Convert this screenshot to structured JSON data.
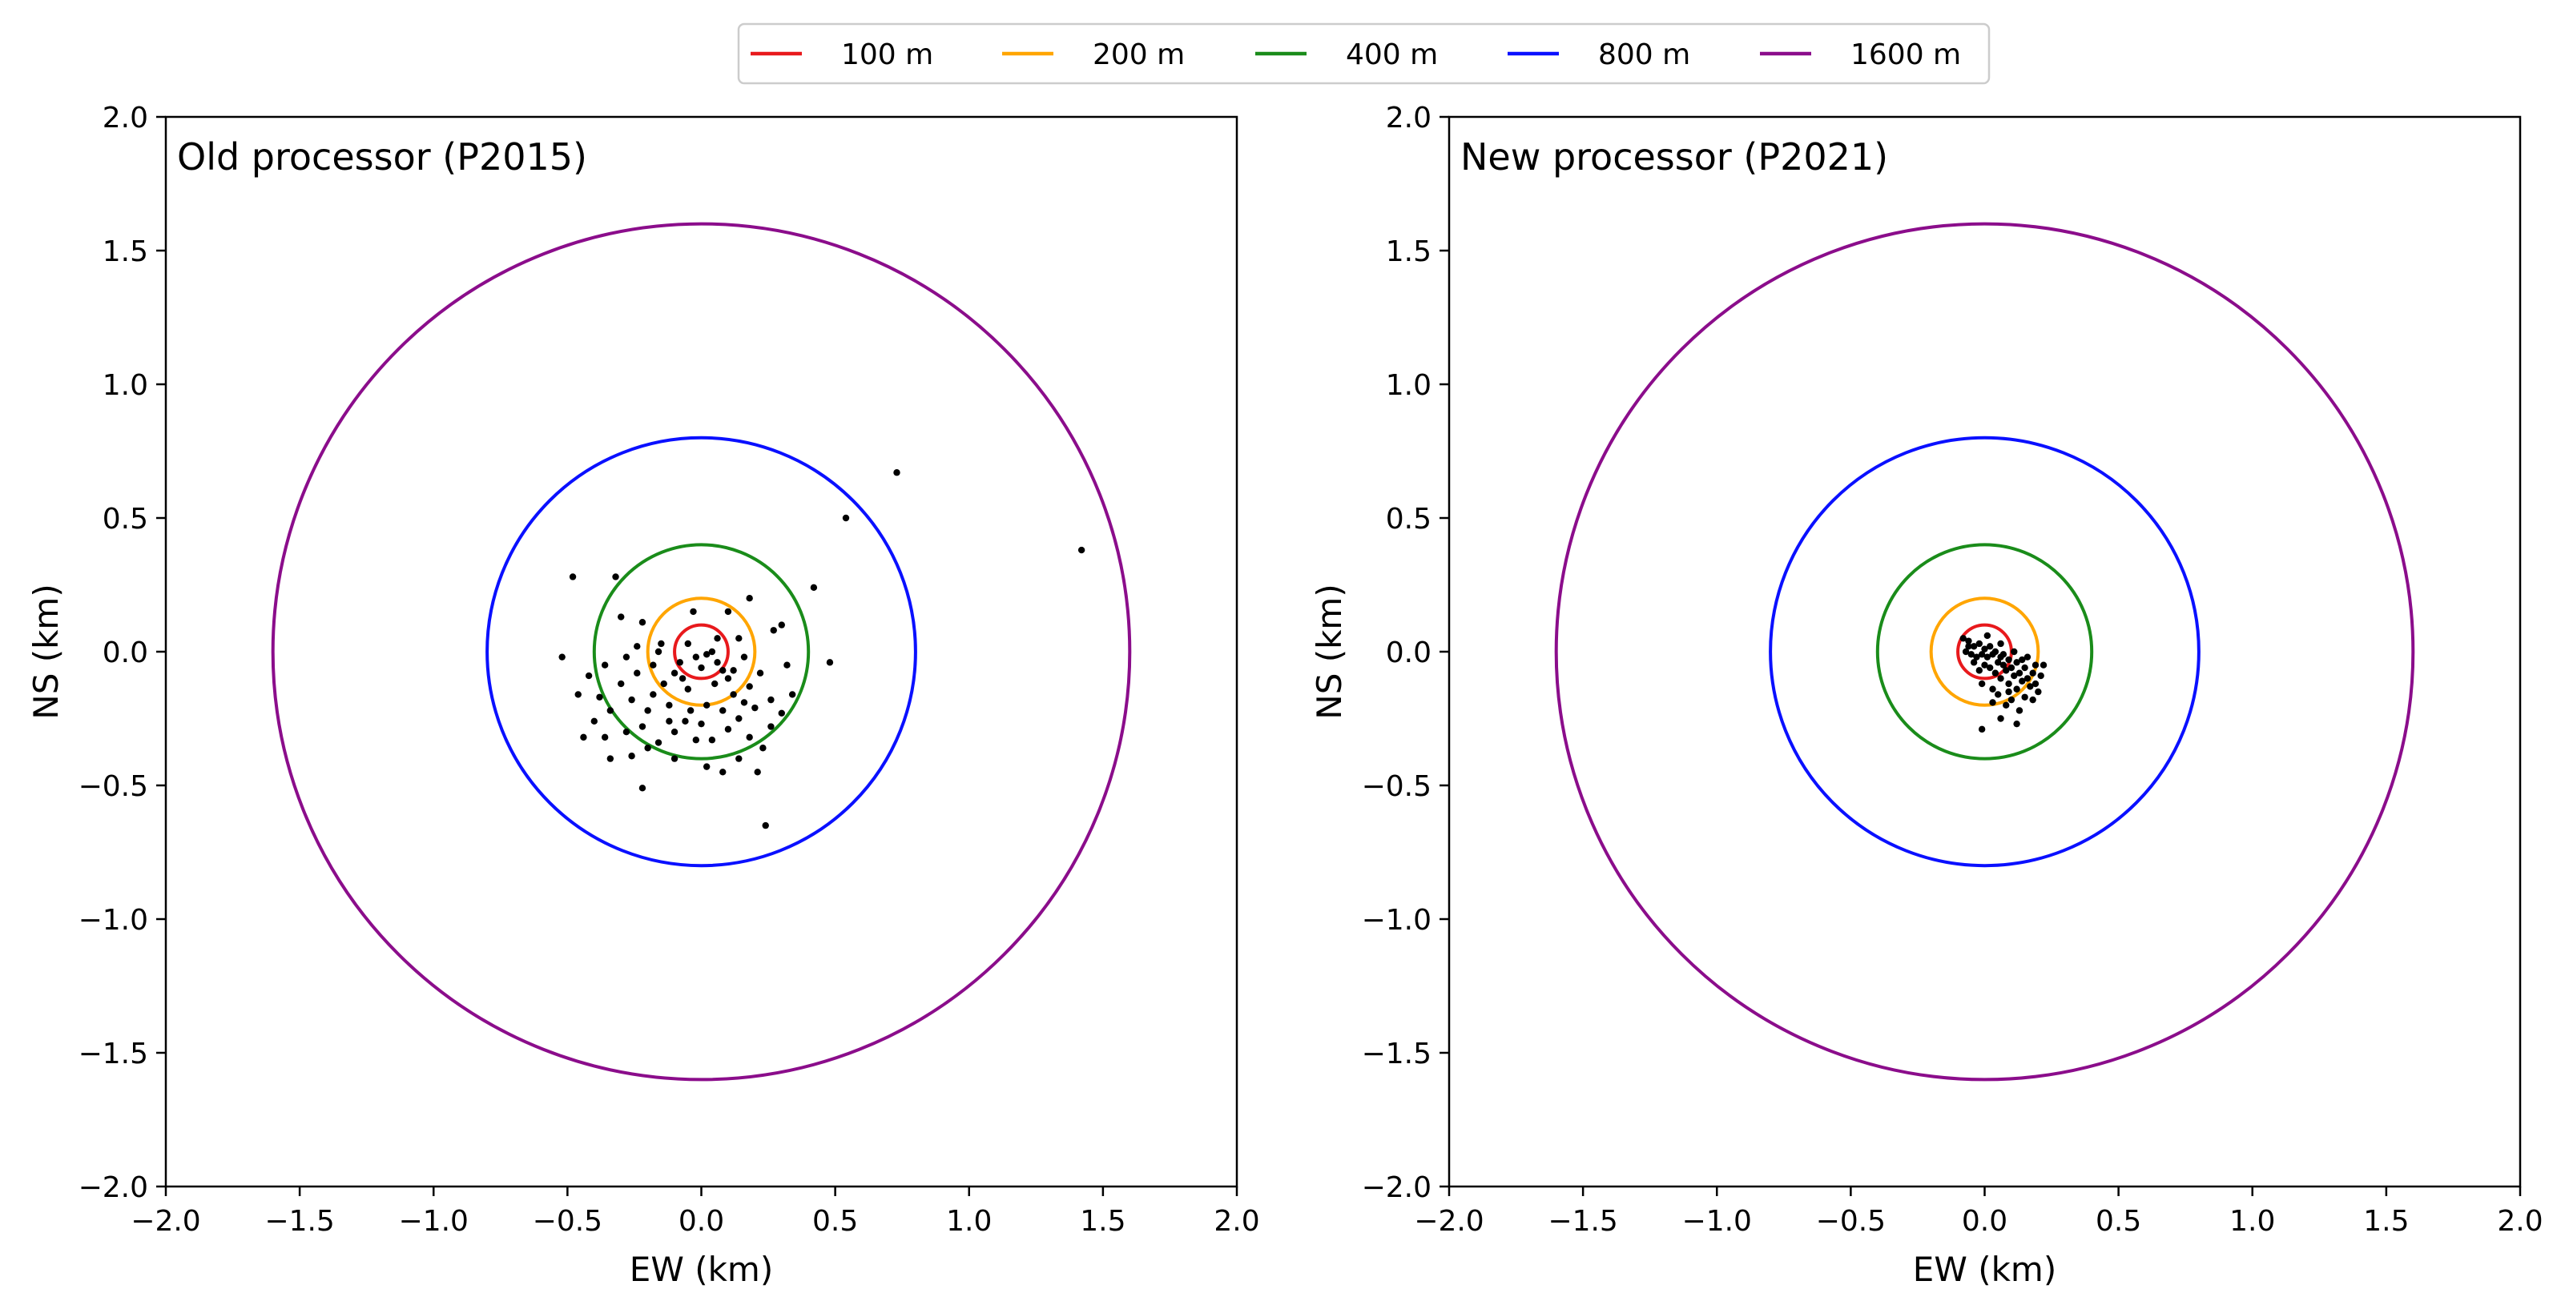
{
  "chart_data": {
    "type": "scatter",
    "figure_title": "",
    "legend": {
      "placement": "top-center",
      "entries": [
        {
          "label": "100 m",
          "radius_km": 0.1,
          "color": "#e8191c"
        },
        {
          "label": "200 m",
          "radius_km": 0.2,
          "color": "#ffa500"
        },
        {
          "label": "400 m",
          "radius_km": 0.4,
          "color": "#1a8c1a"
        },
        {
          "label": "800 m",
          "radius_km": 0.8,
          "color": "#0a10ff"
        },
        {
          "label": "1600 m",
          "radius_km": 1.6,
          "color": "#8b0d8b"
        }
      ]
    },
    "marker_color": "#000000",
    "panels": [
      {
        "title": "Old processor (P2015)",
        "xlabel": "EW (km)",
        "ylabel": "NS (km)",
        "xlim": [
          -2.0,
          2.0
        ],
        "ylim": [
          -2.0,
          2.0
        ],
        "xticks": [
          "−2.0",
          "−1.5",
          "−1.0",
          "−0.5",
          "0.0",
          "0.5",
          "1.0",
          "1.5",
          "2.0"
        ],
        "yticks": [
          "−2.0",
          "−1.5",
          "−1.0",
          "−0.5",
          "0.0",
          "0.5",
          "1.0",
          "1.5",
          "2.0"
        ],
        "xtick_values": [
          -2.0,
          -1.5,
          -1.0,
          -0.5,
          0.0,
          0.5,
          1.0,
          1.5,
          2.0
        ],
        "ytick_values": [
          -2.0,
          -1.5,
          -1.0,
          -0.5,
          0.0,
          0.5,
          1.0,
          1.5,
          2.0
        ],
        "points": [
          [
            0.73,
            0.67
          ],
          [
            1.42,
            0.38
          ],
          [
            0.54,
            0.5
          ],
          [
            -0.48,
            0.28
          ],
          [
            -0.32,
            0.28
          ],
          [
            -0.3,
            0.13
          ],
          [
            -0.22,
            0.11
          ],
          [
            -0.15,
            0.03
          ],
          [
            -0.52,
            -0.02
          ],
          [
            -0.36,
            -0.05
          ],
          [
            -0.24,
            0.02
          ],
          [
            0.42,
            0.24
          ],
          [
            0.48,
            -0.04
          ],
          [
            0.3,
            0.1
          ],
          [
            0.27,
            0.08
          ],
          [
            0.18,
            0.2
          ],
          [
            0.14,
            0.05
          ],
          [
            -0.03,
            0.15
          ],
          [
            0.1,
            0.15
          ],
          [
            -0.05,
            0.03
          ],
          [
            0.02,
            -0.01
          ],
          [
            0.06,
            -0.04
          ],
          [
            0.0,
            -0.06
          ],
          [
            0.04,
            0.0
          ],
          [
            -0.02,
            -0.02
          ],
          [
            0.08,
            -0.07
          ],
          [
            -0.08,
            -0.04
          ],
          [
            0.1,
            -0.1
          ],
          [
            -0.1,
            -0.08
          ],
          [
            0.05,
            -0.12
          ],
          [
            -0.05,
            -0.14
          ],
          [
            0.12,
            -0.16
          ],
          [
            0.18,
            -0.13
          ],
          [
            -0.14,
            -0.12
          ],
          [
            -0.18,
            -0.16
          ],
          [
            -0.26,
            -0.18
          ],
          [
            -0.3,
            -0.12
          ],
          [
            -0.34,
            -0.22
          ],
          [
            -0.2,
            -0.22
          ],
          [
            -0.12,
            -0.2
          ],
          [
            -0.04,
            -0.22
          ],
          [
            0.02,
            -0.2
          ],
          [
            0.08,
            -0.22
          ],
          [
            0.14,
            -0.25
          ],
          [
            0.2,
            -0.21
          ],
          [
            0.26,
            -0.18
          ],
          [
            0.3,
            -0.23
          ],
          [
            0.34,
            -0.16
          ],
          [
            0.32,
            -0.05
          ],
          [
            0.22,
            -0.08
          ],
          [
            0.16,
            -0.02
          ],
          [
            -0.24,
            -0.08
          ],
          [
            -0.28,
            -0.02
          ],
          [
            -0.38,
            -0.17
          ],
          [
            -0.4,
            -0.26
          ],
          [
            -0.44,
            -0.32
          ],
          [
            -0.36,
            -0.32
          ],
          [
            -0.28,
            -0.3
          ],
          [
            -0.22,
            -0.28
          ],
          [
            -0.16,
            -0.34
          ],
          [
            -0.1,
            -0.3
          ],
          [
            -0.06,
            -0.26
          ],
          [
            0.0,
            -0.27
          ],
          [
            0.04,
            -0.33
          ],
          [
            0.1,
            -0.29
          ],
          [
            0.18,
            -0.32
          ],
          [
            0.26,
            -0.28
          ],
          [
            0.23,
            -0.36
          ],
          [
            0.14,
            -0.4
          ],
          [
            0.02,
            -0.43
          ],
          [
            -0.1,
            -0.4
          ],
          [
            -0.2,
            -0.36
          ],
          [
            -0.26,
            -0.39
          ],
          [
            -0.34,
            -0.4
          ],
          [
            -0.22,
            -0.51
          ],
          [
            0.08,
            -0.45
          ],
          [
            0.21,
            -0.45
          ],
          [
            0.24,
            -0.65
          ],
          [
            -0.46,
            -0.16
          ],
          [
            -0.42,
            -0.09
          ],
          [
            -0.16,
            0.0
          ],
          [
            -0.07,
            -0.1
          ],
          [
            0.06,
            0.05
          ],
          [
            -0.12,
            -0.26
          ],
          [
            0.16,
            -0.19
          ],
          [
            -0.02,
            -0.33
          ],
          [
            0.12,
            -0.07
          ],
          [
            -0.18,
            -0.05
          ]
        ]
      },
      {
        "title": "New processor (P2021)",
        "xlabel": "EW (km)",
        "ylabel": "NS (km)",
        "xlim": [
          -2.0,
          2.0
        ],
        "ylim": [
          -2.0,
          2.0
        ],
        "xticks": [
          "−2.0",
          "−1.5",
          "−1.0",
          "−0.5",
          "0.0",
          "0.5",
          "1.0",
          "1.5",
          "2.0"
        ],
        "yticks": [
          "−2.0",
          "−1.5",
          "−1.0",
          "−0.5",
          "0.0",
          "0.5",
          "1.0",
          "1.5",
          "2.0"
        ],
        "xtick_values": [
          -2.0,
          -1.5,
          -1.0,
          -0.5,
          0.0,
          0.5,
          1.0,
          1.5,
          2.0
        ],
        "ytick_values": [
          -2.0,
          -1.5,
          -1.0,
          -0.5,
          0.0,
          0.5,
          1.0,
          1.5,
          2.0
        ],
        "points": [
          [
            -0.06,
            0.04
          ],
          [
            -0.04,
            0.02
          ],
          [
            -0.02,
            0.03
          ],
          [
            0.0,
            0.01
          ],
          [
            0.02,
            0.02
          ],
          [
            -0.05,
            -0.01
          ],
          [
            -0.03,
            -0.02
          ],
          [
            -0.01,
            -0.01
          ],
          [
            0.01,
            -0.02
          ],
          [
            0.03,
            -0.01
          ],
          [
            0.04,
            0.0
          ],
          [
            0.06,
            -0.02
          ],
          [
            0.05,
            -0.04
          ],
          [
            0.07,
            -0.05
          ],
          [
            0.09,
            -0.03
          ],
          [
            0.08,
            -0.07
          ],
          [
            0.1,
            -0.06
          ],
          [
            0.12,
            -0.04
          ],
          [
            0.11,
            -0.09
          ],
          [
            0.13,
            -0.08
          ],
          [
            0.15,
            -0.06
          ],
          [
            0.14,
            -0.11
          ],
          [
            0.16,
            -0.1
          ],
          [
            0.18,
            -0.08
          ],
          [
            0.17,
            -0.13
          ],
          [
            0.19,
            -0.12
          ],
          [
            0.21,
            -0.09
          ],
          [
            0.2,
            -0.15
          ],
          [
            0.12,
            -0.14
          ],
          [
            0.09,
            -0.12
          ],
          [
            0.06,
            -0.1
          ],
          [
            0.04,
            -0.08
          ],
          [
            0.02,
            -0.06
          ],
          [
            0.0,
            -0.05
          ],
          [
            -0.02,
            -0.07
          ],
          [
            0.05,
            -0.16
          ],
          [
            0.1,
            -0.18
          ],
          [
            0.15,
            -0.17
          ],
          [
            0.08,
            -0.2
          ],
          [
            0.03,
            -0.19
          ],
          [
            -0.01,
            -0.12
          ],
          [
            -0.07,
            0.0
          ],
          [
            -0.08,
            0.05
          ],
          [
            0.01,
            0.06
          ],
          [
            0.06,
            0.03
          ],
          [
            0.11,
            0.0
          ],
          [
            0.16,
            -0.02
          ],
          [
            0.22,
            -0.05
          ],
          [
            0.18,
            -0.18
          ],
          [
            0.13,
            -0.22
          ],
          [
            0.06,
            -0.25
          ],
          [
            -0.01,
            -0.29
          ],
          [
            0.12,
            -0.27
          ],
          [
            0.03,
            -0.14
          ],
          [
            0.07,
            -0.01
          ],
          [
            -0.04,
            -0.04
          ],
          [
            -0.06,
            0.02
          ],
          [
            0.14,
            -0.03
          ],
          [
            0.19,
            -0.05
          ],
          [
            0.09,
            -0.15
          ]
        ]
      }
    ]
  }
}
